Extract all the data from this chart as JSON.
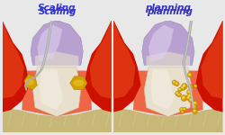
{
  "bg_color": "#e8e8e8",
  "panel_bg": "#ffffff",
  "title_left": "Scaling",
  "title_right": "planning",
  "title_color_left": "#3333cc",
  "title_color_right": "#3333bb",
  "gum_red_dark": "#cc1100",
  "gum_red_mid": "#dd3311",
  "gum_red_light": "#ee6644",
  "gum_pink": "#e87060",
  "tooth_white": "#f0ece0",
  "tooth_cream": "#e8e0cc",
  "tooth_shadow": "#d8d0b8",
  "crown_purple": "#b8a0d0",
  "crown_lavender": "#ccc0e0",
  "crown_highlight": "#ddd0ee",
  "tool_gray": "#aaaaaa",
  "tool_dark": "#666666",
  "tool_light": "#cccccc",
  "tartar_gold": "#d4a000",
  "tartar_yellow": "#e8c020",
  "tartar_light": "#f0d040",
  "bone_tan": "#c8b878",
  "bone_light": "#ddd0a0",
  "panel_border": "#bbbbbb"
}
